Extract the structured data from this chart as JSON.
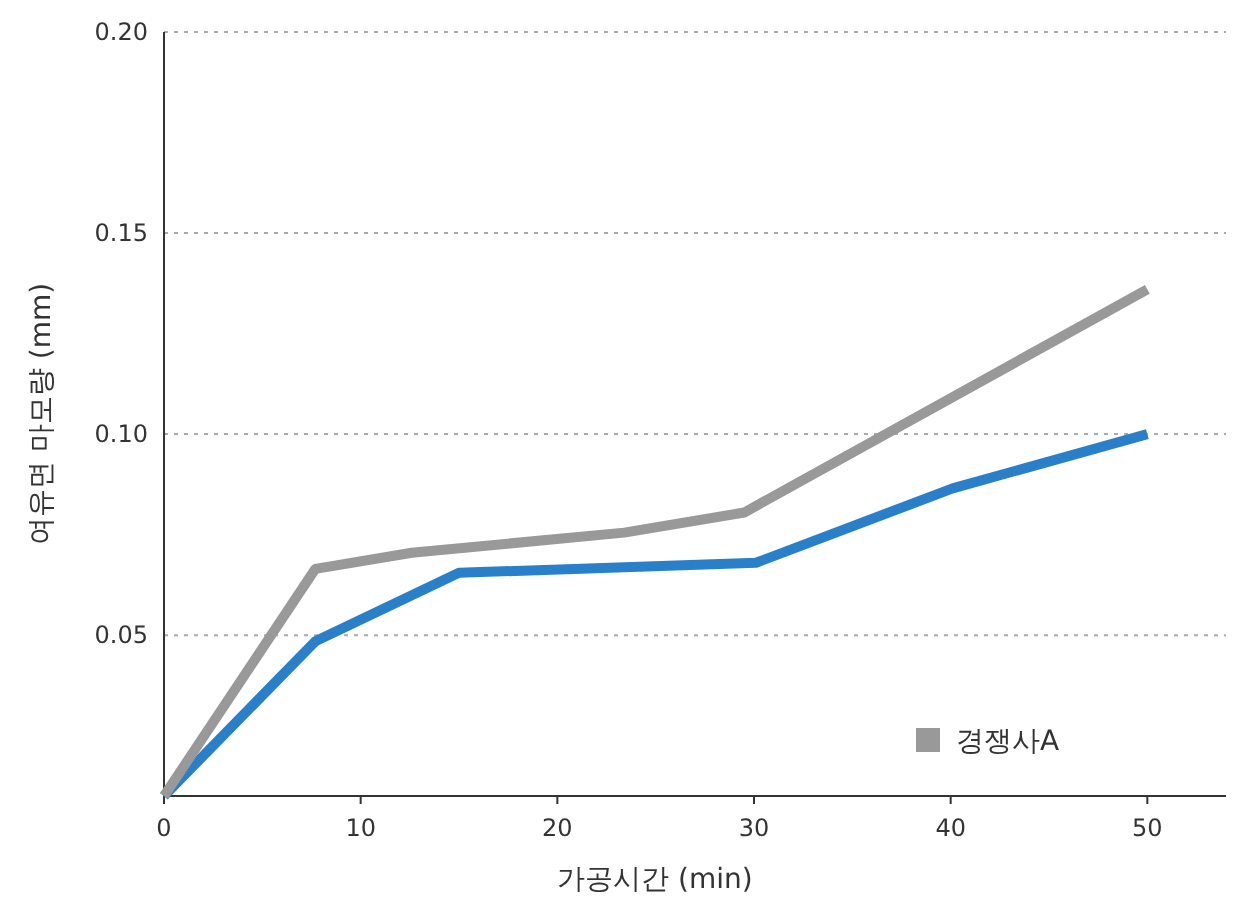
{
  "chart_data": {
    "type": "line",
    "xlabel": "가공시간 (min)",
    "ylabel": "여유면 마모량 (mm)",
    "xlim": [
      0,
      54
    ],
    "xticks": [
      0,
      10,
      20,
      30,
      40,
      50
    ],
    "ylim": [
      0.01,
      0.2
    ],
    "yticks": [
      0.05,
      {
        "value": 0.1,
        "label": "0.10"
      },
      0.15,
      {
        "value": 0.2,
        "label": "0.20"
      }
    ],
    "grid": "y",
    "legend": "bottom right",
    "marker": "none",
    "line_style": "solid",
    "series": [
      {
        "color": "#2a7fc9",
        "x": [
          0,
          7.7,
          15,
          30.1,
          40.1,
          50
        ],
        "values": [
          0.01,
          0.0485,
          0.0655,
          0.068,
          0.0865,
          0.1
        ]
      },
      {
        "name": "경쟁사A",
        "color": "#999999",
        "x": [
          0,
          7.7,
          12.6,
          23.4,
          29.5,
          50
        ],
        "values": [
          0.01,
          0.0665,
          0.0705,
          0.0755,
          0.0805,
          0.136
        ]
      }
    ]
  }
}
